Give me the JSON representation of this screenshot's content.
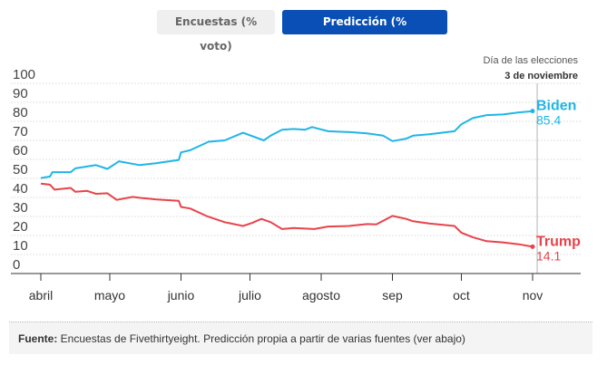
{
  "toggle": {
    "polls_label": "Encuestas (% voto)",
    "prediction_label": "Predicción (% probabilidad)",
    "active": "prediction",
    "active_color": "#0a4fb5"
  },
  "source": {
    "label": "Fuente:",
    "text": " Encuestas de Fivethirtyeight. Predicción propia a partir de varias fuentes (ver abajo)"
  },
  "chart_data": {
    "type": "line",
    "title": "",
    "xlabel": "",
    "ylabel": "",
    "ylim": [
      0,
      100
    ],
    "yticks": [
      0,
      10,
      20,
      30,
      40,
      50,
      60,
      70,
      80,
      90,
      100
    ],
    "xticks": [
      {
        "date": "2020-04-01",
        "label": "abril"
      },
      {
        "date": "2020-05-01",
        "label": "mayo"
      },
      {
        "date": "2020-06-01",
        "label": "junio"
      },
      {
        "date": "2020-07-01",
        "label": "julio"
      },
      {
        "date": "2020-08-01",
        "label": "agosto"
      },
      {
        "date": "2020-09-01",
        "label": "sep"
      },
      {
        "date": "2020-10-01",
        "label": "oct"
      },
      {
        "date": "2020-11-01",
        "label": "nov"
      }
    ],
    "grid": true,
    "annotation": {
      "date": "2020-11-03",
      "line1": "Día de las elecciones",
      "line2": "3 de noviembre"
    },
    "series": [
      {
        "name": "Biden",
        "color": "#1fb5e8",
        "final_label": "85.4",
        "points": [
          [
            "2020-04-01",
            50.2
          ],
          [
            "2020-04-05",
            51
          ],
          [
            "2020-04-06",
            53.3
          ],
          [
            "2020-04-14",
            53.3
          ],
          [
            "2020-04-16",
            55.3
          ],
          [
            "2020-04-25",
            57
          ],
          [
            "2020-04-30",
            55
          ],
          [
            "2020-05-05",
            59
          ],
          [
            "2020-05-14",
            57
          ],
          [
            "2020-05-21",
            58
          ],
          [
            "2020-05-31",
            59.7
          ],
          [
            "2020-06-01",
            63.7
          ],
          [
            "2020-06-05",
            64.8
          ],
          [
            "2020-06-13",
            69.3
          ],
          [
            "2020-06-20",
            70
          ],
          [
            "2020-06-28",
            74
          ],
          [
            "2020-07-07",
            70
          ],
          [
            "2020-07-10",
            72.5
          ],
          [
            "2020-07-15",
            75.6
          ],
          [
            "2020-07-20",
            76
          ],
          [
            "2020-07-25",
            75.6
          ],
          [
            "2020-07-28",
            77
          ],
          [
            "2020-08-04",
            74.8
          ],
          [
            "2020-08-13",
            74.4
          ],
          [
            "2020-08-21",
            73.7
          ],
          [
            "2020-08-28",
            72.5
          ],
          [
            "2020-09-01",
            69.6
          ],
          [
            "2020-09-07",
            70.9
          ],
          [
            "2020-09-10",
            72.5
          ],
          [
            "2020-09-17",
            73.2
          ],
          [
            "2020-09-28",
            74.8
          ],
          [
            "2020-10-01",
            78.5
          ],
          [
            "2020-10-06",
            81.7
          ],
          [
            "2020-10-12",
            83.3
          ],
          [
            "2020-10-19",
            83.6
          ],
          [
            "2020-10-26",
            84.7
          ],
          [
            "2020-11-01",
            85.4
          ]
        ]
      },
      {
        "name": "Trump",
        "color": "#e8434a",
        "final_label": "14.1",
        "points": [
          [
            "2020-04-01",
            47.3
          ],
          [
            "2020-04-05",
            46.7
          ],
          [
            "2020-04-07",
            44.1
          ],
          [
            "2020-04-14",
            45
          ],
          [
            "2020-04-16",
            43
          ],
          [
            "2020-04-21",
            43.5
          ],
          [
            "2020-04-25",
            41.9
          ],
          [
            "2020-04-30",
            42.2
          ],
          [
            "2020-05-04",
            38.7
          ],
          [
            "2020-05-11",
            40.3
          ],
          [
            "2020-05-14",
            39.8
          ],
          [
            "2020-05-21",
            39
          ],
          [
            "2020-05-31",
            38.2
          ],
          [
            "2020-06-01",
            35
          ],
          [
            "2020-06-05",
            34.2
          ],
          [
            "2020-06-12",
            30.3
          ],
          [
            "2020-06-20",
            27
          ],
          [
            "2020-06-28",
            25
          ],
          [
            "2020-07-02",
            26.6
          ],
          [
            "2020-07-06",
            28.7
          ],
          [
            "2020-07-10",
            27
          ],
          [
            "2020-07-15",
            23.4
          ],
          [
            "2020-07-20",
            23.9
          ],
          [
            "2020-07-29",
            23.4
          ],
          [
            "2020-08-04",
            24.7
          ],
          [
            "2020-08-13",
            25
          ],
          [
            "2020-08-21",
            26
          ],
          [
            "2020-08-25",
            25.8
          ],
          [
            "2020-09-01",
            30.3
          ],
          [
            "2020-09-07",
            28.7
          ],
          [
            "2020-09-10",
            27.5
          ],
          [
            "2020-09-17",
            26.3
          ],
          [
            "2020-09-28",
            25
          ],
          [
            "2020-10-01",
            21.5
          ],
          [
            "2020-10-06",
            19.1
          ],
          [
            "2020-10-12",
            17
          ],
          [
            "2020-10-19",
            16.4
          ],
          [
            "2020-10-26",
            15.4
          ],
          [
            "2020-11-01",
            14.1
          ]
        ]
      }
    ]
  }
}
